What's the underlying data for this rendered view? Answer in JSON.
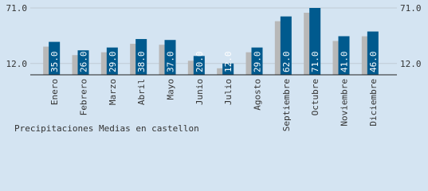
{
  "chart_data": {
    "type": "bar",
    "title": "Precipitaciones Medias en castellon",
    "categories": [
      "Enero",
      "Febrero",
      "Marzo",
      "Abril",
      "Mayo",
      "Junio",
      "Julio",
      "Agosto",
      "Septiembre",
      "Octubre",
      "Noviembre",
      "Diciembre"
    ],
    "values": [
      35,
      26,
      29,
      38,
      37,
      20,
      12,
      29,
      62,
      71,
      41,
      46
    ],
    "value_labels": [
      "35.0",
      "26.0",
      "29.0",
      "38.0",
      "37.0",
      "20.0",
      "12.0",
      "29.0",
      "62.0",
      "71.0",
      "41.0",
      "46.0"
    ],
    "color": "#005a8e",
    "shadow_color": "#b8b8b8",
    "ylim": [
      0,
      71
    ],
    "yticks": [
      {
        "value": 12,
        "label": "12.0"
      },
      {
        "value": 71,
        "label": "71.0"
      }
    ],
    "grid": true
  }
}
